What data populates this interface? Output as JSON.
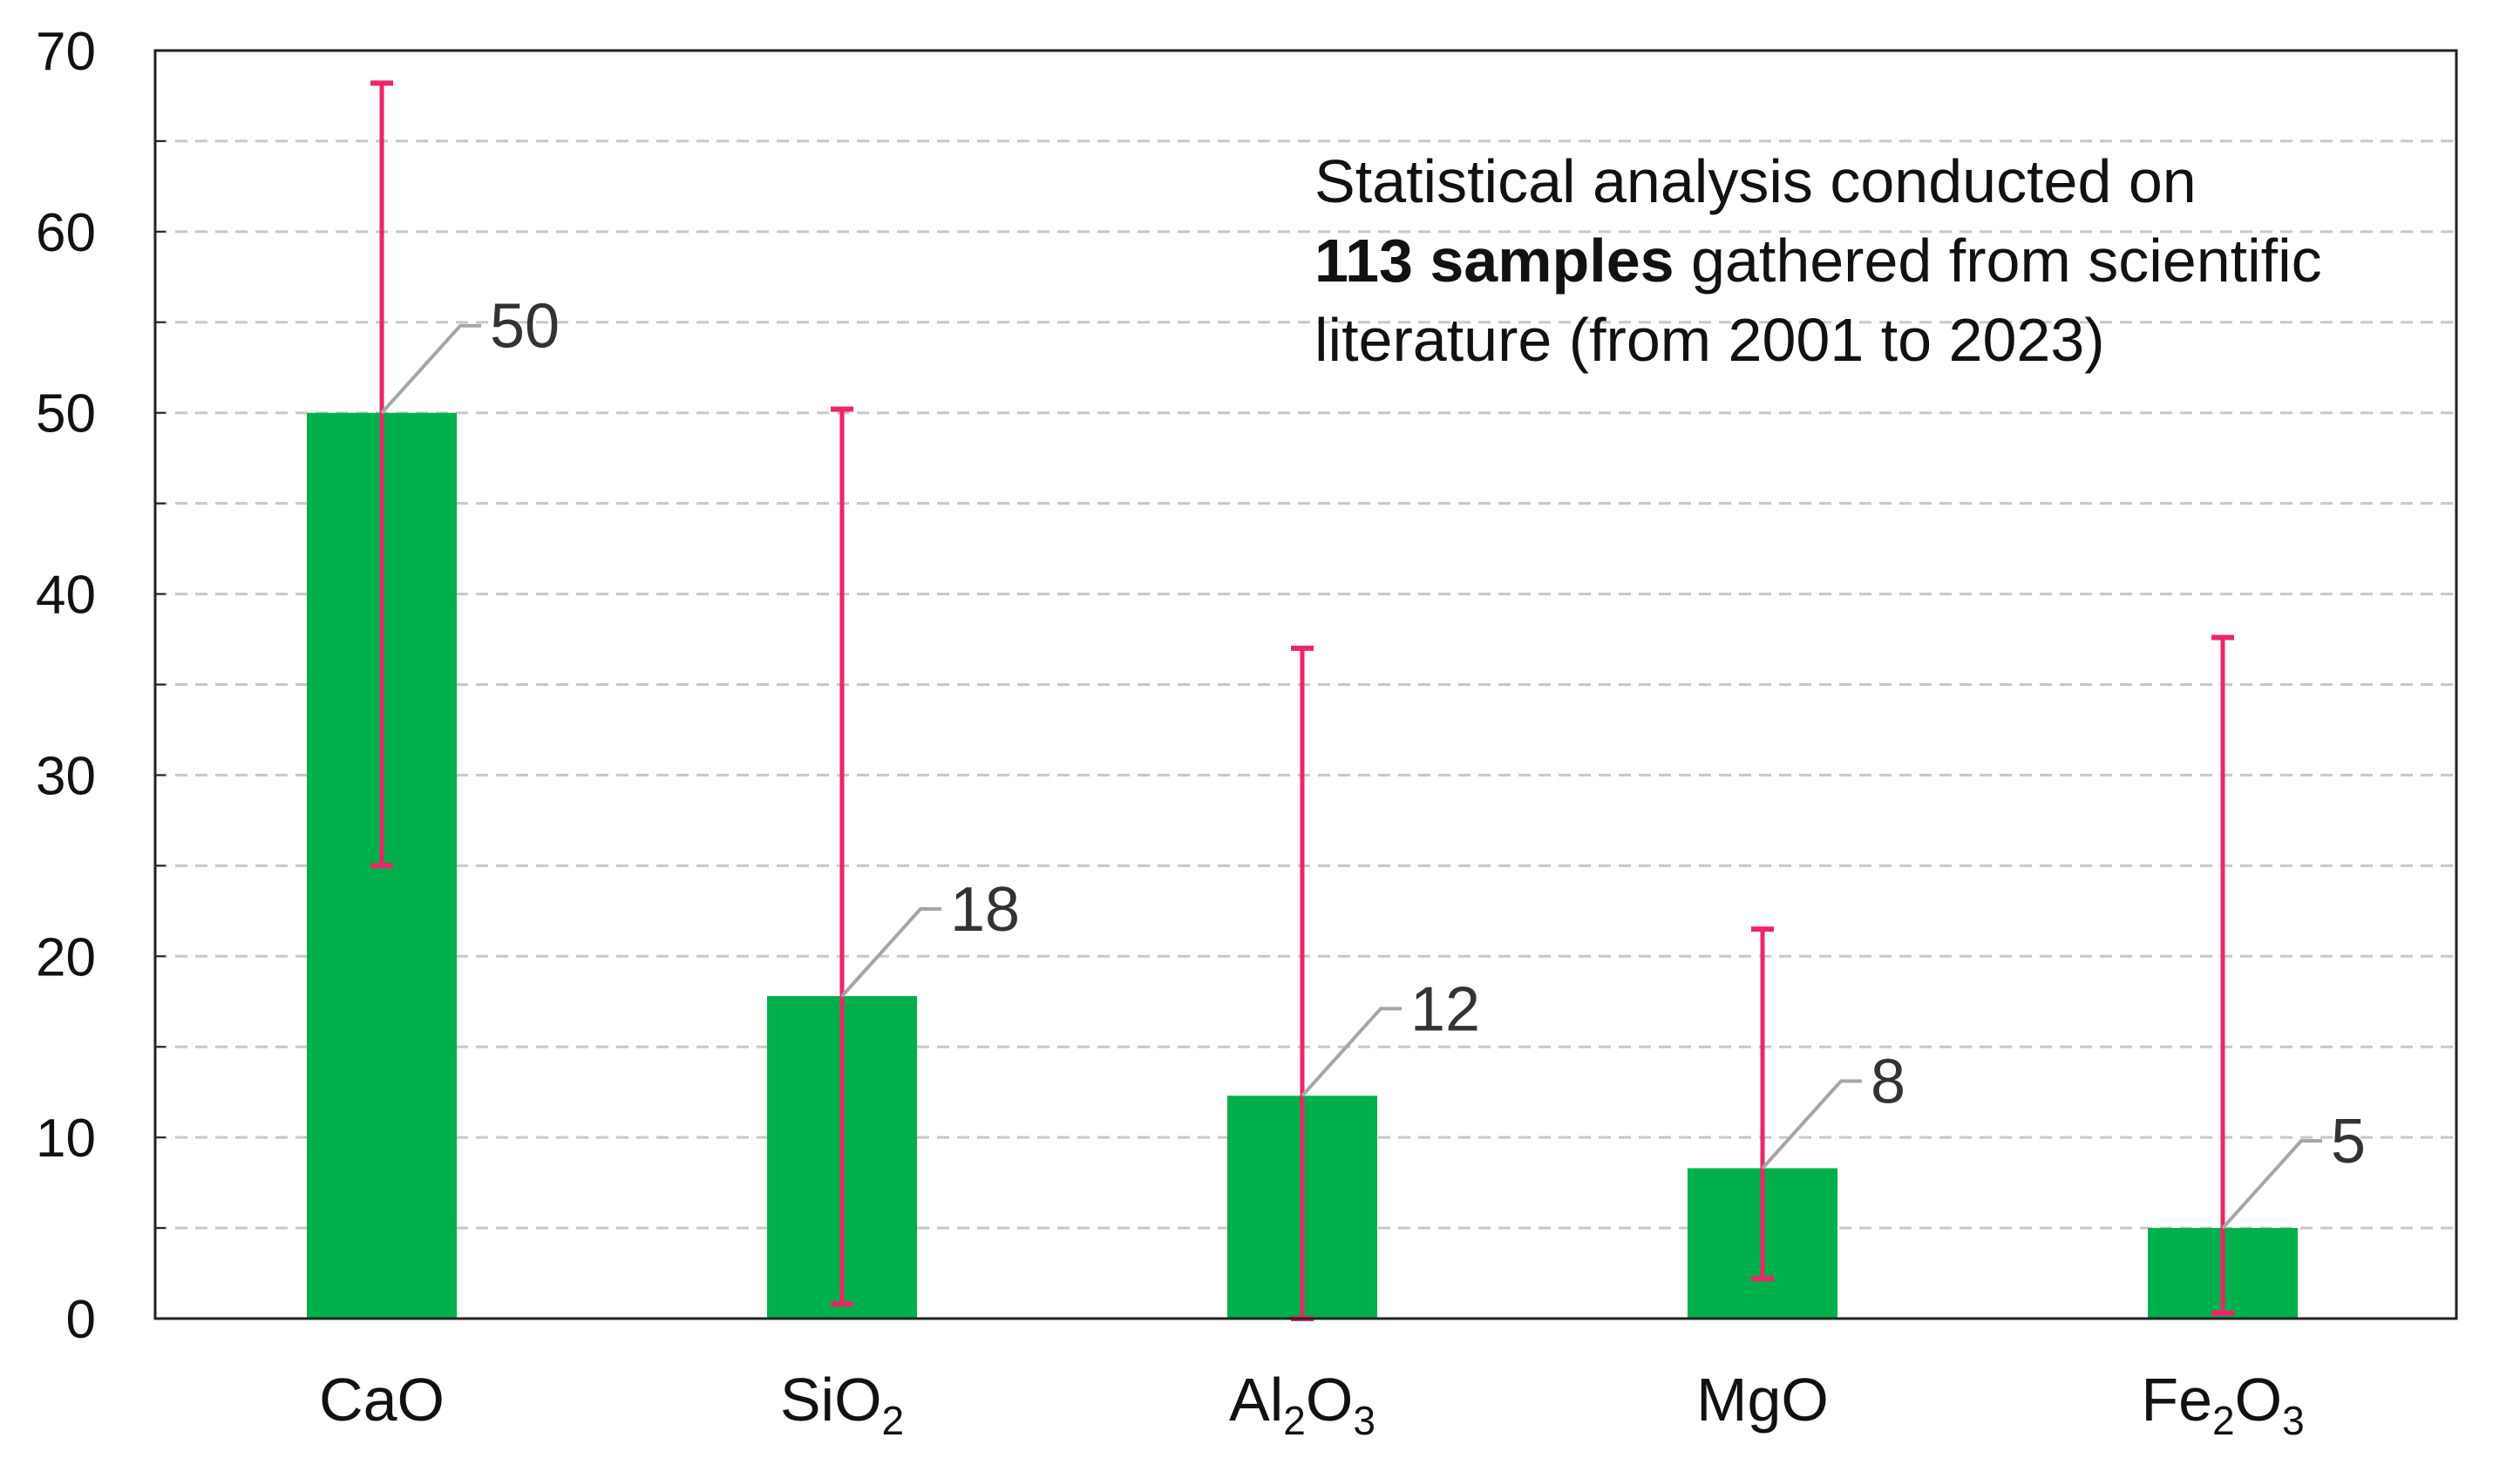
{
  "colors": {
    "bar": "#00B04B",
    "error_bar": "#EE2566",
    "leader_line": "#A6A6A6",
    "grid": "#C8C8C8",
    "axis": "#222222"
  },
  "chart_data": {
    "type": "bar",
    "title": "",
    "xlabel": "",
    "ylabel": "",
    "ylim": [
      0,
      70
    ],
    "yticks": [
      0,
      10,
      20,
      30,
      40,
      50,
      60,
      70
    ],
    "grid": "dashed horizontal at every 5",
    "legend": "none",
    "categories": [
      {
        "id": "CaO",
        "base": "CaO",
        "parts": [
          {
            "t": "CaO",
            "sub": false
          }
        ]
      },
      {
        "id": "SiO2",
        "base": "SiO2",
        "parts": [
          {
            "t": "SiO",
            "sub": false
          },
          {
            "t": "2",
            "sub": true
          }
        ]
      },
      {
        "id": "Al2O3",
        "base": "Al2O3",
        "parts": [
          {
            "t": "Al",
            "sub": false
          },
          {
            "t": "2",
            "sub": true
          },
          {
            "t": "O",
            "sub": false
          },
          {
            "t": "3",
            "sub": true
          }
        ]
      },
      {
        "id": "MgO",
        "base": "MgO",
        "parts": [
          {
            "t": "MgO",
            "sub": false
          }
        ]
      },
      {
        "id": "Fe2O3",
        "base": "Fe2O3",
        "parts": [
          {
            "t": "Fe",
            "sub": false
          },
          {
            "t": "2",
            "sub": true
          },
          {
            "t": "O",
            "sub": false
          },
          {
            "t": "3",
            "sub": true
          }
        ]
      }
    ],
    "values": [
      50,
      17.8,
      12.3,
      8.3,
      5
    ],
    "data_labels": [
      "50",
      "18",
      "12",
      "8",
      "5"
    ],
    "error_low": [
      25,
      0.8,
      0,
      2.2,
      0.3
    ],
    "error_high": [
      68.2,
      50.2,
      37,
      21.5,
      37.6
    ],
    "annotation": {
      "line1": "Statistical analysis conducted on",
      "line2_bold": "113 samples",
      "line2_rest": " gathered from scientific",
      "line3": "literature (from 2001 to 2023)"
    }
  }
}
